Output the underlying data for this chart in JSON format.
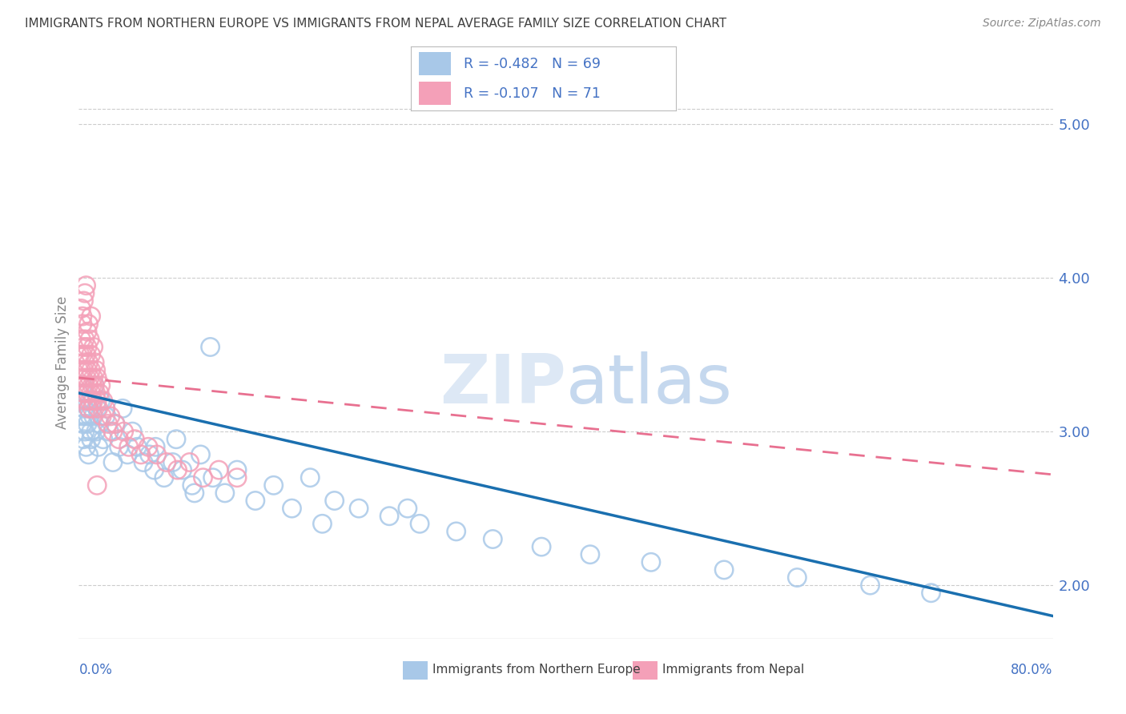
{
  "title": "IMMIGRANTS FROM NORTHERN EUROPE VS IMMIGRANTS FROM NEPAL AVERAGE FAMILY SIZE CORRELATION CHART",
  "source": "Source: ZipAtlas.com",
  "ylabel": "Average Family Size",
  "xmin": 0.0,
  "xmax": 0.8,
  "ymin": 1.65,
  "ymax": 5.25,
  "yticks": [
    2.0,
    3.0,
    4.0,
    5.0
  ],
  "blue_label": "Immigrants from Northern Europe",
  "pink_label": "Immigrants from Nepal",
  "blue_R": -0.482,
  "blue_N": 69,
  "pink_R": -0.107,
  "pink_N": 71,
  "blue_color": "#a8c8e8",
  "pink_color": "#f4a0b8",
  "blue_line_color": "#1a6faf",
  "pink_line_color": "#e87090",
  "watermark_color": "#dde8f5",
  "background_color": "#ffffff",
  "grid_color": "#cccccc",
  "title_color": "#404040",
  "axis_label_color": "#4472c4",
  "blue_scatter_x": [
    0.001,
    0.002,
    0.003,
    0.003,
    0.004,
    0.004,
    0.005,
    0.005,
    0.006,
    0.006,
    0.007,
    0.007,
    0.008,
    0.008,
    0.009,
    0.01,
    0.01,
    0.011,
    0.012,
    0.013,
    0.014,
    0.015,
    0.016,
    0.017,
    0.018,
    0.02,
    0.022,
    0.025,
    0.028,
    0.03,
    0.033,
    0.036,
    0.04,
    0.044,
    0.048,
    0.053,
    0.058,
    0.063,
    0.07,
    0.077,
    0.085,
    0.093,
    0.1,
    0.11,
    0.12,
    0.13,
    0.145,
    0.16,
    0.175,
    0.19,
    0.21,
    0.23,
    0.255,
    0.28,
    0.31,
    0.34,
    0.38,
    0.42,
    0.47,
    0.53,
    0.59,
    0.65,
    0.7,
    0.08,
    0.095,
    0.108,
    0.062,
    0.2,
    0.27
  ],
  "blue_scatter_y": [
    3.2,
    3.1,
    3.3,
    3.05,
    3.15,
    2.95,
    3.25,
    3.0,
    3.1,
    2.9,
    3.2,
    3.05,
    3.15,
    2.85,
    3.1,
    3.0,
    2.95,
    3.2,
    3.1,
    3.3,
    3.0,
    3.15,
    2.9,
    3.05,
    3.2,
    2.95,
    3.1,
    3.0,
    2.8,
    3.05,
    2.9,
    3.15,
    2.85,
    3.0,
    2.9,
    2.8,
    2.85,
    2.9,
    2.7,
    2.8,
    2.75,
    2.65,
    2.85,
    2.7,
    2.6,
    2.75,
    2.55,
    2.65,
    2.5,
    2.7,
    2.55,
    2.5,
    2.45,
    2.4,
    2.35,
    2.3,
    2.25,
    2.2,
    2.15,
    2.1,
    2.05,
    2.0,
    1.95,
    2.95,
    2.6,
    3.55,
    2.75,
    2.4,
    2.5
  ],
  "pink_scatter_x": [
    0.001,
    0.001,
    0.002,
    0.002,
    0.003,
    0.003,
    0.003,
    0.004,
    0.004,
    0.004,
    0.005,
    0.005,
    0.005,
    0.006,
    0.006,
    0.006,
    0.007,
    0.007,
    0.007,
    0.008,
    0.008,
    0.008,
    0.009,
    0.009,
    0.01,
    0.01,
    0.01,
    0.011,
    0.011,
    0.012,
    0.012,
    0.013,
    0.013,
    0.014,
    0.014,
    0.015,
    0.015,
    0.016,
    0.017,
    0.018,
    0.019,
    0.02,
    0.022,
    0.024,
    0.026,
    0.028,
    0.03,
    0.033,
    0.037,
    0.041,
    0.046,
    0.051,
    0.057,
    0.064,
    0.072,
    0.081,
    0.091,
    0.102,
    0.115,
    0.13,
    0.002,
    0.003,
    0.004,
    0.005,
    0.006,
    0.007,
    0.008,
    0.009,
    0.01,
    0.012,
    0.015
  ],
  "pink_scatter_y": [
    3.3,
    3.5,
    3.6,
    3.4,
    3.7,
    3.5,
    3.35,
    3.55,
    3.4,
    3.25,
    3.45,
    3.3,
    3.6,
    3.35,
    3.5,
    3.2,
    3.4,
    3.25,
    3.55,
    3.3,
    3.45,
    3.15,
    3.35,
    3.2,
    3.4,
    3.25,
    3.5,
    3.3,
    3.15,
    3.35,
    3.2,
    3.45,
    3.3,
    3.25,
    3.4,
    3.2,
    3.35,
    3.15,
    3.25,
    3.3,
    3.1,
    3.2,
    3.15,
    3.05,
    3.1,
    3.0,
    3.05,
    2.95,
    3.0,
    2.9,
    2.95,
    2.85,
    2.9,
    2.85,
    2.8,
    2.75,
    2.8,
    2.7,
    2.75,
    2.7,
    3.8,
    3.75,
    3.85,
    3.9,
    3.95,
    3.65,
    3.7,
    3.6,
    3.75,
    3.55,
    2.65
  ]
}
